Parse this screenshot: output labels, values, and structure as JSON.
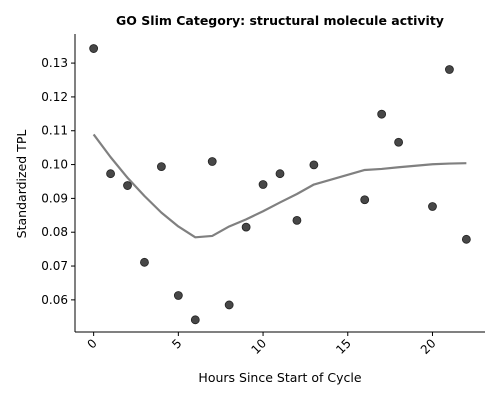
{
  "chart_data": {
    "type": "scatter",
    "title": "GO Slim Category: structural molecule activity",
    "xlabel": "Hours Since Start of Cycle",
    "ylabel": "Standardized TPL",
    "xlim": [
      -1.1,
      23.1
    ],
    "ylim": [
      0.0505,
      0.1386
    ],
    "x_ticks": [
      0,
      5,
      10,
      15,
      20
    ],
    "x_tick_labels": [
      "0",
      "5",
      "10",
      "15",
      "20"
    ],
    "x_tick_rotation": 45,
    "y_ticks": [
      0.06,
      0.07,
      0.08,
      0.09,
      0.1,
      0.11,
      0.12,
      0.13
    ],
    "y_tick_labels": [
      "0.06",
      "0.07",
      "0.08",
      "0.09",
      "0.10",
      "0.11",
      "0.12",
      "0.13"
    ],
    "grid": false,
    "spines": "left-bottom",
    "colors": {
      "points": "#333333",
      "trend_line": "#808080"
    },
    "series": [
      {
        "type": "scatter",
        "x": [
          0,
          1,
          2,
          3,
          4,
          5,
          6,
          7,
          8,
          9,
          10,
          11,
          12,
          13,
          16,
          17,
          18,
          20,
          21,
          22
        ],
        "y": [
          0.1343,
          0.0973,
          0.0938,
          0.0711,
          0.0994,
          0.0613,
          0.0541,
          0.1009,
          0.0585,
          0.0815,
          0.0941,
          0.0973,
          0.0835,
          0.0999,
          0.0896,
          0.1149,
          0.1066,
          0.0876,
          0.1281,
          0.0779
        ]
      },
      {
        "type": "line",
        "x": [
          0,
          1,
          2,
          3,
          4,
          5,
          6,
          7,
          8,
          9,
          10,
          11,
          12,
          13,
          16,
          17,
          18,
          20,
          21,
          22
        ],
        "y": [
          0.1089,
          0.1022,
          0.0961,
          0.0907,
          0.0858,
          0.0817,
          0.0785,
          0.0789,
          0.0817,
          0.0838,
          0.0862,
          0.0888,
          0.0913,
          0.0941,
          0.0984,
          0.0987,
          0.0992,
          0.1001,
          0.1003,
          0.1004
        ]
      }
    ]
  }
}
